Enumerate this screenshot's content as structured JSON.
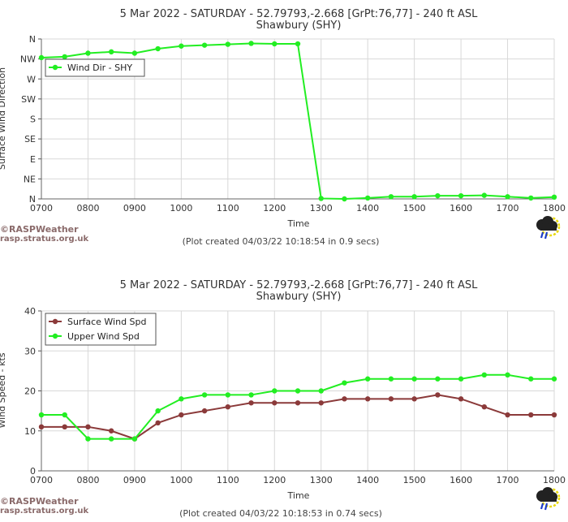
{
  "brand": {
    "name": "©RASPWeather",
    "url": "rasp.stratus.org.uk"
  },
  "colors": {
    "green": "#22ee22",
    "maroon": "#8b3a3a",
    "grid": "#d8d8d8"
  },
  "chart_data": [
    {
      "type": "line",
      "title": "5 Mar 2022 - SATURDAY - 52.79793,-2.668 [GrPt:76,77]  - 240 ft ASL",
      "subtitle": "Shawbury (SHY)",
      "xlabel": "Time",
      "ylabel": "Surface Wind Direction",
      "categories": [
        "0700",
        "0800",
        "0900",
        "1000",
        "1100",
        "1200",
        "1300",
        "1400",
        "1500",
        "1600",
        "1700",
        "1800"
      ],
      "y_tick_labels": [
        "N",
        "NE",
        "E",
        "SE",
        "S",
        "SW",
        "W",
        "NW",
        "N"
      ],
      "ylim": [
        0,
        360
      ],
      "credit": "(Plot created 04/03/22 10:18:54 in 0.9 secs)",
      "legend_position": "top-left",
      "series": [
        {
          "name": "Wind Dir - SHY",
          "color": "#22ee22",
          "x": [
            700,
            750,
            800,
            850,
            900,
            950,
            1000,
            1050,
            1100,
            1150,
            1200,
            1250,
            1300,
            1350,
            1400,
            1450,
            1500,
            1550,
            1600,
            1650,
            1700,
            1750,
            1800
          ],
          "values": [
            318,
            320,
            328,
            331,
            328,
            338,
            344,
            346,
            348,
            350,
            349,
            349,
            1,
            0,
            2,
            5,
            5,
            7,
            7,
            8,
            5,
            2,
            4
          ]
        }
      ]
    },
    {
      "type": "line",
      "title": "5 Mar 2022 - SATURDAY - 52.79793,-2.668 [GrPt:76,77]  - 240 ft ASL",
      "subtitle": "Shawbury (SHY)",
      "xlabel": "Time",
      "ylabel": "Wind Speed - kts",
      "categories": [
        "0700",
        "0800",
        "0900",
        "1000",
        "1100",
        "1200",
        "1300",
        "1400",
        "1500",
        "1600",
        "1700",
        "1800"
      ],
      "y_tick_labels": [
        "0",
        "10",
        "20",
        "30",
        "40"
      ],
      "ylim": [
        0,
        40
      ],
      "credit": "(Plot created 04/03/22 10:18:53 in 0.74 secs)",
      "legend_position": "top-left",
      "series": [
        {
          "name": "Surface Wind Spd",
          "color": "#8b3a3a",
          "x": [
            700,
            750,
            800,
            850,
            900,
            950,
            1000,
            1050,
            1100,
            1150,
            1200,
            1250,
            1300,
            1350,
            1400,
            1450,
            1500,
            1550,
            1600,
            1650,
            1700,
            1750,
            1800
          ],
          "values": [
            11,
            11,
            11,
            10,
            8,
            12,
            14,
            15,
            16,
            17,
            17,
            17,
            17,
            18,
            18,
            18,
            18,
            19,
            18,
            16,
            14,
            14,
            14
          ]
        },
        {
          "name": "Upper Wind Spd",
          "color": "#22ee22",
          "x": [
            700,
            750,
            800,
            850,
            900,
            950,
            1000,
            1050,
            1100,
            1150,
            1200,
            1250,
            1300,
            1350,
            1400,
            1450,
            1500,
            1550,
            1600,
            1650,
            1700,
            1750,
            1800
          ],
          "values": [
            14,
            14,
            8,
            8,
            8,
            15,
            18,
            19,
            19,
            19,
            20,
            20,
            20,
            22,
            23,
            23,
            23,
            23,
            23,
            24,
            24,
            23,
            23
          ]
        }
      ]
    }
  ]
}
